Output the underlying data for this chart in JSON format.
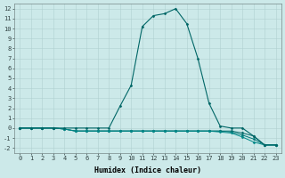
{
  "xlabel": "Humidex (Indice chaleur)",
  "ylabel": "",
  "background_color": "#cce9e9",
  "grid_color": "#b0d0d0",
  "xlim": [
    -0.5,
    23.5
  ],
  "ylim": [
    -2.5,
    12.5
  ],
  "xticks": [
    0,
    1,
    2,
    3,
    4,
    5,
    6,
    7,
    8,
    9,
    10,
    11,
    12,
    13,
    14,
    15,
    16,
    17,
    18,
    19,
    20,
    21,
    22,
    23
  ],
  "yticks": [
    -2,
    -1,
    0,
    1,
    2,
    3,
    4,
    5,
    6,
    7,
    8,
    9,
    10,
    11,
    12
  ],
  "series": [
    {
      "x": [
        0,
        1,
        2,
        3,
        4,
        5,
        6,
        7,
        8,
        9,
        10,
        11,
        12,
        13,
        14,
        15,
        16,
        17,
        18,
        19,
        20,
        21,
        22,
        23
      ],
      "y": [
        0,
        0,
        0,
        0,
        0,
        0,
        0,
        0,
        0,
        2.2,
        4.3,
        10.2,
        11.3,
        11.5,
        12.0,
        10.5,
        7.0,
        2.5,
        0.2,
        0.0,
        0.0,
        -0.8,
        -1.7,
        -1.7
      ],
      "color": "#006666",
      "marker": "D",
      "markersize": 1.5,
      "linewidth": 0.8,
      "zorder": 3
    },
    {
      "x": [
        0,
        1,
        2,
        3,
        4,
        5,
        6,
        7,
        8,
        9,
        10,
        11,
        12,
        13,
        14,
        15,
        16,
        17,
        18,
        19,
        20,
        21,
        22,
        23
      ],
      "y": [
        0,
        0,
        0,
        0,
        -0.1,
        -0.3,
        -0.3,
        -0.3,
        -0.3,
        -0.3,
        -0.3,
        -0.3,
        -0.3,
        -0.3,
        -0.3,
        -0.3,
        -0.3,
        -0.3,
        -0.3,
        -0.3,
        -0.5,
        -0.8,
        -1.7,
        -1.7
      ],
      "color": "#006666",
      "marker": "D",
      "markersize": 1.5,
      "linewidth": 0.7,
      "zorder": 2
    },
    {
      "x": [
        0,
        1,
        2,
        3,
        4,
        5,
        6,
        7,
        8,
        9,
        10,
        11,
        12,
        13,
        14,
        15,
        16,
        17,
        18,
        19,
        20,
        21,
        22,
        23
      ],
      "y": [
        0,
        0,
        0,
        0,
        -0.1,
        -0.3,
        -0.3,
        -0.3,
        -0.3,
        -0.3,
        -0.3,
        -0.3,
        -0.3,
        -0.3,
        -0.3,
        -0.3,
        -0.3,
        -0.3,
        -0.3,
        -0.4,
        -0.7,
        -1.1,
        -1.7,
        -1.7
      ],
      "color": "#007777",
      "marker": "D",
      "markersize": 1.5,
      "linewidth": 0.7,
      "zorder": 2
    },
    {
      "x": [
        0,
        1,
        2,
        3,
        4,
        5,
        6,
        7,
        8,
        9,
        10,
        11,
        12,
        13,
        14,
        15,
        16,
        17,
        18,
        19,
        20,
        21,
        22,
        23
      ],
      "y": [
        0,
        0,
        0,
        0,
        -0.1,
        -0.3,
        -0.3,
        -0.3,
        -0.3,
        -0.3,
        -0.3,
        -0.3,
        -0.3,
        -0.3,
        -0.3,
        -0.3,
        -0.3,
        -0.3,
        -0.4,
        -0.5,
        -0.9,
        -1.4,
        -1.7,
        -1.7
      ],
      "color": "#008888",
      "marker": "D",
      "markersize": 1.5,
      "linewidth": 0.7,
      "zorder": 2
    }
  ],
  "font_family": "monospace",
  "tick_fontsize": 5.0,
  "label_fontsize": 6.0
}
